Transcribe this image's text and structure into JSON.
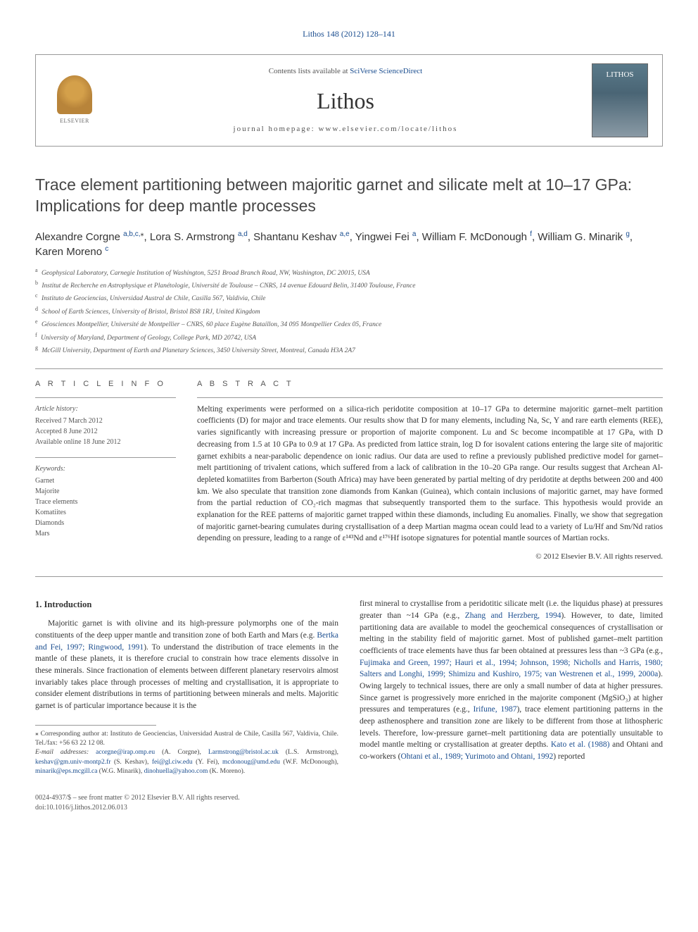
{
  "top_link": "Lithos 148 (2012) 128–141",
  "header": {
    "contents_prefix": "Contents lists available at ",
    "contents_link": "SciVerse ScienceDirect",
    "journal": "Lithos",
    "homepage_prefix": "journal homepage: ",
    "homepage_url": "www.elsevier.com/locate/lithos",
    "elsevier_label": "ELSEVIER",
    "cover_label": "LITHOS"
  },
  "title_line1": "Trace element partitioning between majoritic garnet and silicate melt at 10–17 GPa:",
  "title_line2": "Implications for deep mantle processes",
  "authors_html": "Alexandre Corgne ",
  "authors": [
    {
      "name": "Alexandre Corgne ",
      "sup": "a,b,c,",
      "star": true
    },
    {
      "name": ", Lora S. Armstrong ",
      "sup": "a,d"
    },
    {
      "name": ", Shantanu Keshav ",
      "sup": "a,e"
    },
    {
      "name": ", Yingwei Fei ",
      "sup": "a"
    },
    {
      "name": ", William F. McDonough ",
      "sup": "f"
    },
    {
      "name": ", William G. Minarik ",
      "sup": "g"
    },
    {
      "name": ", Karen Moreno ",
      "sup": "c"
    }
  ],
  "affiliations": [
    {
      "key": "a",
      "text": "Geophysical Laboratory, Carnegie Institution of Washington, 5251 Broad Branch Road, NW, Washington, DC 20015, USA"
    },
    {
      "key": "b",
      "text": "Institut de Recherche en Astrophysique et Planétologie, Université de Toulouse – CNRS, 14 avenue Edouard Belin, 31400 Toulouse, France"
    },
    {
      "key": "c",
      "text": "Instituto de Geociencias, Universidad Austral de Chile, Casilla 567, Valdivia, Chile"
    },
    {
      "key": "d",
      "text": "School of Earth Sciences, University of Bristol, Bristol BS8 1RJ, United Kingdom"
    },
    {
      "key": "e",
      "text": "Géosciences Montpellier, Université de Montpellier – CNRS, 60 place Eugène Bataillon, 34 095 Montpellier Cedex 05, France"
    },
    {
      "key": "f",
      "text": "University of Maryland, Department of Geology, College Park, MD 20742, USA"
    },
    {
      "key": "g",
      "text": "McGill University, Department of Earth and Planetary Sciences, 3450 University Street, Montreal, Canada H3A 2A7"
    }
  ],
  "article_info_heading": "A R T I C L E   I N F O",
  "abstract_heading": "A B S T R A C T",
  "history": {
    "label": "Article history:",
    "received": "Received 7 March 2012",
    "accepted": "Accepted 8 June 2012",
    "online": "Available online 18 June 2012"
  },
  "keywords": {
    "label": "Keywords:",
    "items": [
      "Garnet",
      "Majorite",
      "Trace elements",
      "Komatiites",
      "Diamonds",
      "Mars"
    ]
  },
  "abstract": "Melting experiments were performed on a silica-rich peridotite composition at 10–17 GPa to determine majoritic garnet–melt partition coefficients (D) for major and trace elements. Our results show that D for many elements, including Na, Sc, Y and rare earth elements (REE), varies significantly with increasing pressure or proportion of majorite component. Lu and Sc become incompatible at 17 GPa, with D decreasing from 1.5 at 10 GPa to 0.9 at 17 GPa. As predicted from lattice strain, log D for isovalent cations entering the large site of majoritic garnet exhibits a near-parabolic dependence on ionic radius. Our data are used to refine a previously published predictive model for garnet–melt partitioning of trivalent cations, which suffered from a lack of calibration in the 10–20 GPa range. Our results suggest that Archean Al-depleted komatiites from Barberton (South Africa) may have been generated by partial melting of dry peridotite at depths between 200 and 400 km. We also speculate that transition zone diamonds from Kankan (Guinea), which contain inclusions of majoritic garnet, may have formed from the partial reduction of CO₂-rich magmas that subsequently transported them to the surface. This hypothesis would provide an explanation for the REE patterns of majoritic garnet trapped within these diamonds, including Eu anomalies. Finally, we show that segregation of majoritic garnet-bearing cumulates during crystallisation of a deep Martian magma ocean could lead to a variety of Lu/Hf and Sm/Nd ratios depending on pressure, leading to a range of ε¹⁴³Nd and ε¹⁷⁶Hf isotope signatures for potential mantle sources of Martian rocks.",
  "copyright": "© 2012 Elsevier B.V. All rights reserved.",
  "intro_heading": "1. Introduction",
  "intro_col1_pre": "Majoritic garnet is with olivine and its high-pressure polymorphs one of the main constituents of the deep upper mantle and transition zone of both Earth and Mars (e.g. ",
  "intro_col1_link1": "Bertka and Fei, 1997; Ringwood, 1991",
  "intro_col1_post": "). To understand the distribution of trace elements in the mantle of these planets, it is therefore crucial to constrain how trace elements dissolve in these minerals. Since fractionation of elements between different planetary reservoirs almost invariably takes place through processes of melting and crystallisation, it is appropriate to consider element distributions in terms of partitioning between minerals and melts. Majoritic garnet is of particular importance because it is the",
  "intro_col2_pre": "first mineral to crystallise from a peridotitic silicate melt (i.e. the liquidus phase) at pressures greater than ~14 GPa (e.g., ",
  "intro_col2_link1": "Zhang and Herzberg, 1994",
  "intro_col2_mid1": "). However, to date, limited partitioning data are available to model the geochemical consequences of crystallisation or melting in the stability field of majoritic garnet. Most of published garnet–melt partition coefficients of trace elements have thus far been obtained at pressures less than ~3 GPa (e.g., ",
  "intro_col2_link2": "Fujimaka and Green, 1997; Hauri et al., 1994; Johnson, 1998; Nicholls and Harris, 1980; Salters and Longhi, 1999; Shimizu and Kushiro, 1975; van Westrenen et al., 1999, 2000a",
  "intro_col2_mid2": "). Owing largely to technical issues, there are only a small number of data at higher pressures. Since garnet is progressively more enriched in the majorite component (MgSiO₃) at higher pressures and temperatures (e.g., ",
  "intro_col2_link3": "Irifune, 1987",
  "intro_col2_mid3": "), trace element partitioning patterns in the deep asthenosphere and transition zone are likely to be different from those at lithospheric levels. Therefore, low-pressure garnet–melt partitioning data are potentially unsuitable to model mantle melting or crystallisation at greater depths. ",
  "intro_col2_link4": "Kato et al. (1988)",
  "intro_col2_mid4": " and Ohtani and co-workers (",
  "intro_col2_link5": "Ohtani et al., 1989; Yurimoto and Ohtani, 1992",
  "intro_col2_end": ") reported",
  "footnote_corr_label": "⁎ Corresponding author at: Instituto de Geociencias, Universidad Austral de Chile, Casilla 567, Valdivia, Chile. Tel./fax: +56 63 22 12 08.",
  "footnote_emails_label": "E-mail addresses: ",
  "emails": [
    {
      "addr": "acorgne@irap.omp.eu",
      "who": "(A. Corgne)"
    },
    {
      "addr": "Larmstrong@bristol.ac.uk",
      "who": "(L.S. Armstrong)"
    },
    {
      "addr": "keshav@gm.univ-montp2.fr",
      "who": "(S. Keshav)"
    },
    {
      "addr": "fei@gl.ciw.edu",
      "who": "(Y. Fei)"
    },
    {
      "addr": "mcdonoug@umd.edu",
      "who": "(W.F. McDonough)"
    },
    {
      "addr": "minarik@eps.mcgill.ca",
      "who": "(W.G. Minarik)"
    },
    {
      "addr": "dinohuella@yahoo.com",
      "who": "(K. Moreno)"
    }
  ],
  "footer_issn": "0024-4937/$ – see front matter © 2012 Elsevier B.V. All rights reserved.",
  "footer_doi": "doi:10.1016/j.lithos.2012.06.013",
  "colors": {
    "link": "#1a4d8f",
    "text": "#333333",
    "muted": "#555555",
    "rule": "#999999"
  }
}
